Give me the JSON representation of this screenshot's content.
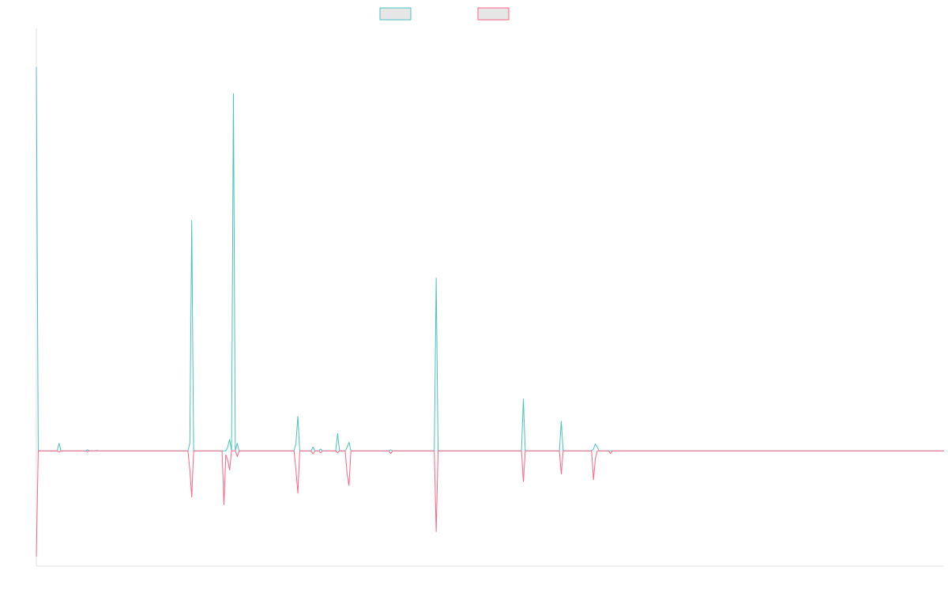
{
  "chart_data": {
    "type": "line",
    "title": "",
    "xlabel": "",
    "ylabel": "",
    "grid": false,
    "legend_position": "top-center",
    "x_count": 480,
    "ylim": [
      -0.3,
      1.1
    ],
    "series": [
      {
        "color": "#4bc0c0",
        "fill": "#e6e6e6",
        "points": [
          [
            0,
            1.0
          ],
          [
            1,
            0
          ],
          [
            11,
            0
          ],
          [
            12,
            0.02
          ],
          [
            13,
            0
          ],
          [
            26,
            0
          ],
          [
            27,
            0.003
          ],
          [
            28,
            0
          ],
          [
            31,
            0
          ],
          [
            32,
            0.001
          ],
          [
            33,
            0
          ],
          [
            80,
            0
          ],
          [
            81,
            0.02
          ],
          [
            82,
            0.6
          ],
          [
            83,
            0
          ],
          [
            100,
            0
          ],
          [
            101,
            0.01
          ],
          [
            102,
            0.03
          ],
          [
            103,
            0
          ],
          [
            104,
            0.93
          ],
          [
            105,
            0
          ],
          [
            106,
            0.02
          ],
          [
            107,
            0
          ],
          [
            136,
            0
          ],
          [
            137,
            0.02
          ],
          [
            138,
            0.09
          ],
          [
            139,
            0
          ],
          [
            145,
            0
          ],
          [
            146,
            0.01
          ],
          [
            147,
            0
          ],
          [
            149,
            0
          ],
          [
            150,
            0.005
          ],
          [
            151,
            0
          ],
          [
            158,
            0
          ],
          [
            159,
            0.045
          ],
          [
            160,
            0
          ],
          [
            163,
            0
          ],
          [
            164,
            0.01
          ],
          [
            165,
            0.022
          ],
          [
            166,
            0
          ],
          [
            186,
            0
          ],
          [
            187,
            0.003
          ],
          [
            188,
            0
          ],
          [
            210,
            0
          ],
          [
            211,
            0.45
          ],
          [
            212,
            0
          ],
          [
            256,
            0
          ],
          [
            257,
            0.135
          ],
          [
            258,
            0
          ],
          [
            276,
            0
          ],
          [
            277,
            0.077
          ],
          [
            278,
            0
          ],
          [
            293,
            0
          ],
          [
            294,
            0.005
          ],
          [
            295,
            0.018
          ],
          [
            296,
            0.01
          ],
          [
            297,
            0
          ],
          [
            479,
            0
          ]
        ]
      },
      {
        "color": "#ff6384",
        "fill": "#e6e6e6",
        "points": [
          [
            0,
            -0.275
          ],
          [
            1,
            0
          ],
          [
            11,
            0
          ],
          [
            12,
            -0.003
          ],
          [
            13,
            0
          ],
          [
            26,
            0
          ],
          [
            27,
            -0.002
          ],
          [
            28,
            0
          ],
          [
            80,
            0
          ],
          [
            81,
            -0.05
          ],
          [
            82,
            -0.12
          ],
          [
            83,
            0
          ],
          [
            98,
            0
          ],
          [
            99,
            -0.14
          ],
          [
            100,
            -0.01
          ],
          [
            101,
            -0.025
          ],
          [
            102,
            -0.05
          ],
          [
            103,
            0
          ],
          [
            105,
            0
          ],
          [
            106,
            -0.015
          ],
          [
            107,
            0
          ],
          [
            136,
            0
          ],
          [
            137,
            -0.05
          ],
          [
            138,
            -0.11
          ],
          [
            139,
            0
          ],
          [
            145,
            0
          ],
          [
            146,
            -0.008
          ],
          [
            147,
            0
          ],
          [
            149,
            0
          ],
          [
            150,
            -0.005
          ],
          [
            151,
            0
          ],
          [
            158,
            0
          ],
          [
            159,
            -0.005
          ],
          [
            160,
            0
          ],
          [
            163,
            0
          ],
          [
            164,
            -0.06
          ],
          [
            165,
            -0.09
          ],
          [
            166,
            0
          ],
          [
            186,
            0
          ],
          [
            187,
            -0.007
          ],
          [
            188,
            0
          ],
          [
            210,
            0
          ],
          [
            211,
            -0.21
          ],
          [
            212,
            0
          ],
          [
            256,
            0
          ],
          [
            257,
            -0.08
          ],
          [
            258,
            0
          ],
          [
            276,
            0
          ],
          [
            277,
            -0.06
          ],
          [
            278,
            0
          ],
          [
            293,
            0
          ],
          [
            294,
            -0.075
          ],
          [
            295,
            -0.02
          ],
          [
            296,
            0
          ],
          [
            302,
            0
          ],
          [
            303,
            -0.007
          ],
          [
            304,
            0
          ],
          [
            479,
            0
          ]
        ]
      }
    ]
  }
}
